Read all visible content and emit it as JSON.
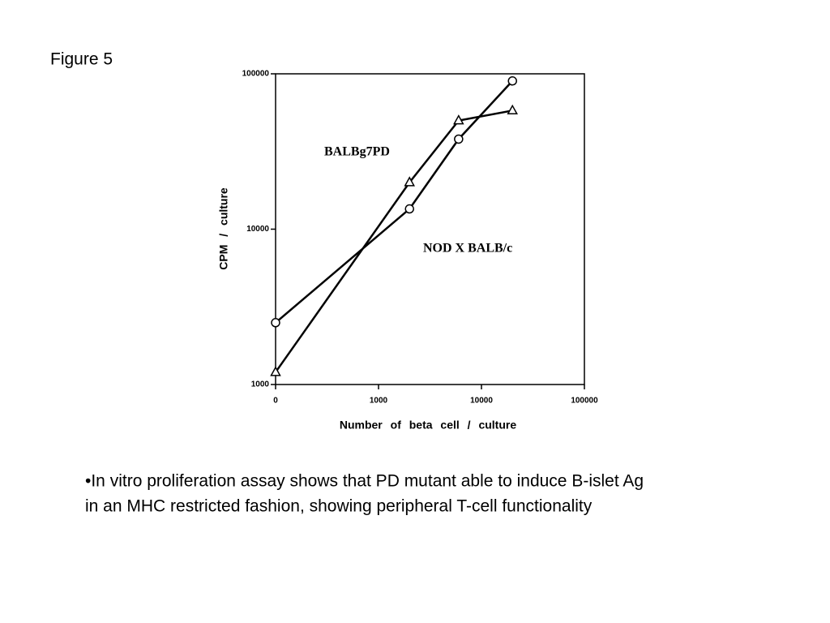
{
  "header": {
    "title": "Figure 5"
  },
  "chart_data": {
    "type": "line",
    "xlabel": "Number of beta cell / culture",
    "ylabel": "CPM / culture",
    "x": [
      100,
      2000,
      6000,
      20000
    ],
    "series": [
      {
        "name": "BALBg7PD",
        "color": "#000000",
        "marker": "triangle",
        "values": [
          1200,
          20000,
          50000,
          58000
        ]
      },
      {
        "name": "NOD X BALB/c",
        "color": "#000000",
        "marker": "circle",
        "values": [
          2500,
          13500,
          38000,
          90000
        ]
      }
    ],
    "xscale": "log",
    "yscale": "log",
    "xlim": [
      100,
      100000
    ],
    "xticks": [
      {
        "value": 100,
        "label": "0"
      },
      1000,
      10000,
      100000
    ],
    "ylim": [
      1000,
      100000
    ],
    "yticks": [
      1000,
      10000,
      100000
    ]
  },
  "caption": {
    "lines": [
      "•In vitro proliferation assay shows that PD mutant able to induce B-islet Ag",
      "in an MHC restricted fashion, showing peripheral T-cell functionality"
    ]
  }
}
